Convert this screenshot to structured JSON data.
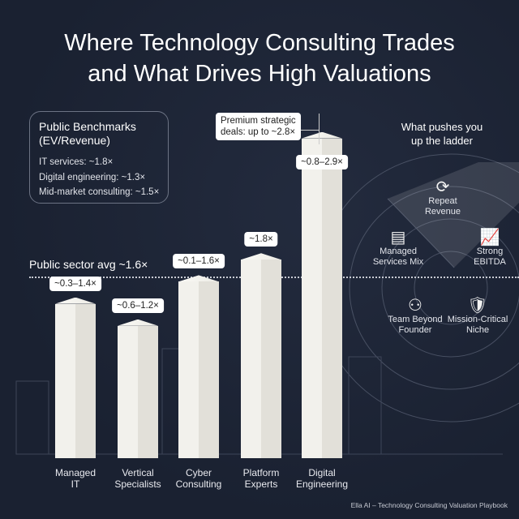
{
  "title_lines": [
    "Where Technology Consulting Trades",
    "and What Drives High Valuations"
  ],
  "benchmarks": {
    "heading_lines": [
      "Public Benchmarks",
      "(EV/Revenue)"
    ],
    "items": [
      "IT services: ~1.8×",
      "Digital engineering: ~1.3×",
      "Mid-market consulting: ~1.5×"
    ]
  },
  "premium_note": [
    "Premium strategic",
    "deals: up to ~2.8×"
  ],
  "drivers": {
    "heading_lines": [
      "What pushes you",
      "up the ladder"
    ],
    "items": [
      {
        "label": [
          "Repeat",
          "Revenue"
        ],
        "icon": "refresh-icon"
      },
      {
        "label": [
          "Managed",
          "Services Mix"
        ],
        "icon": "document-stack-icon"
      },
      {
        "label": [
          "Strong",
          "EBITDA"
        ],
        "icon": "growth-chart-icon"
      },
      {
        "label": [
          "Team Beyond",
          "Founder"
        ],
        "icon": "org-chart-icon"
      },
      {
        "label": [
          "Mission-Critical",
          "Niche"
        ],
        "icon": "shield-lock-icon"
      }
    ]
  },
  "footer": "Ella AI – Technology Consulting Valuation Playbook",
  "chart_data": {
    "type": "bar",
    "categories": [
      [
        "Managed",
        "IT"
      ],
      [
        "Vertical",
        "Specialists"
      ],
      [
        "Cyber",
        "Consulting"
      ],
      [
        "Platform",
        "Experts"
      ],
      [
        "Digital",
        "Engineering"
      ]
    ],
    "range_labels": [
      "~0.3–1.4×",
      "~0.6–1.2×",
      "~0.1–1.6×",
      "~1.8×",
      "~0.8–2.9×"
    ],
    "values_high": [
      1.4,
      1.2,
      1.6,
      1.8,
      2.9
    ],
    "reference_line": {
      "label": "Public sector avg ~1.6×",
      "value": 1.6
    },
    "colors": {
      "bar": "#f2f1ec",
      "background": "#1b2233"
    }
  }
}
